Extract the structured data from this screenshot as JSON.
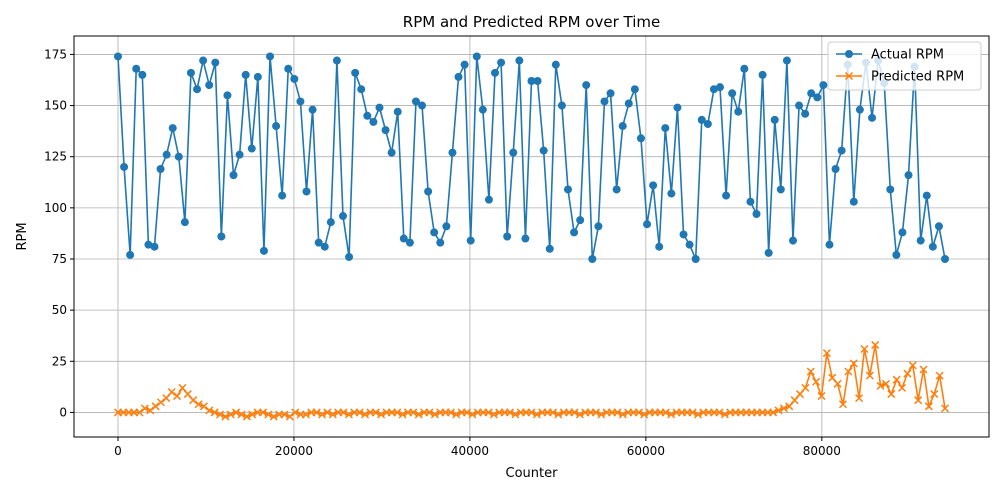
{
  "chart_data": {
    "type": "line",
    "title": "RPM and Predicted RPM over Time",
    "xlabel": "Counter",
    "ylabel": "RPM",
    "xlim": [
      -5000,
      99000
    ],
    "ylim": [
      -12,
      184
    ],
    "xticks": [
      0,
      20000,
      40000,
      60000,
      80000
    ],
    "xtick_labels": [
      "0",
      "20000",
      "40000",
      "60000",
      "80000"
    ],
    "yticks": [
      0,
      25,
      50,
      75,
      100,
      125,
      150,
      175
    ],
    "ytick_labels": [
      "0",
      "25",
      "50",
      "75",
      "100",
      "125",
      "150",
      "175"
    ],
    "grid": true,
    "legend_position": "upper right",
    "x_start": 0,
    "x_step": 500,
    "series": [
      {
        "name": "Actual RPM",
        "color": "#1f77b4",
        "marker": "circle",
        "values": [
          174,
          120,
          77,
          168,
          165,
          82,
          81,
          119,
          126,
          139,
          125,
          93,
          166,
          158,
          172,
          160,
          171,
          86,
          155,
          116,
          126,
          165,
          129,
          164,
          79,
          174,
          140,
          106,
          168,
          163,
          152,
          108,
          148,
          83,
          81,
          93,
          172,
          96,
          76,
          166,
          158,
          145,
          142,
          149,
          138,
          127,
          147,
          85,
          83,
          152,
          150,
          108,
          88,
          83,
          91,
          127,
          164,
          170,
          84,
          174,
          148,
          104,
          166,
          171,
          86,
          127,
          172,
          85,
          162,
          162,
          128,
          80,
          170,
          150,
          109,
          88,
          94,
          160,
          75,
          91,
          152,
          156,
          109,
          140,
          151,
          158,
          134,
          92,
          111,
          81,
          139,
          107,
          149,
          87,
          82,
          75,
          143,
          141,
          158,
          159,
          106,
          156,
          147,
          168,
          103,
          97,
          165,
          78,
          143,
          109,
          172,
          84,
          150,
          146,
          156,
          154,
          160,
          82,
          119,
          128,
          170,
          103,
          148,
          171,
          144,
          172,
          161,
          109,
          77,
          88,
          116,
          169,
          84,
          106,
          81,
          91,
          75
        ],
        "values_note_omitted": false
      },
      {
        "name": "Predicted RPM",
        "color": "#ff7f0e",
        "marker": "x",
        "values": [
          0,
          0,
          0,
          0,
          0,
          2,
          1,
          3,
          5,
          7,
          10,
          8,
          12,
          9,
          6,
          4,
          3,
          1,
          0,
          -1,
          -2,
          -1,
          0,
          -1,
          -2,
          -1,
          0,
          0,
          -1,
          -2,
          -1,
          -1,
          -2,
          0,
          -1,
          -1,
          0,
          0,
          -1,
          0,
          -1,
          0,
          0,
          -1,
          0,
          0,
          -1,
          0,
          0,
          -1,
          0,
          0,
          0,
          -1,
          0,
          0,
          -1,
          0,
          0,
          -1,
          0,
          0,
          0,
          -1,
          0,
          0,
          -1,
          0,
          0,
          0,
          -1,
          0,
          0,
          0,
          -1,
          0,
          0,
          0,
          -1,
          0,
          0,
          0,
          -1,
          0,
          0,
          0,
          -1,
          0,
          0,
          0,
          -1,
          0,
          0,
          0,
          -1,
          0,
          0,
          0,
          -1,
          0,
          0,
          0,
          0,
          -1,
          0,
          0,
          0,
          0,
          -1,
          0,
          0,
          0,
          0,
          -1,
          0,
          0,
          0,
          0,
          0,
          0,
          0,
          0,
          0,
          1,
          2,
          3,
          6,
          9,
          12,
          20,
          15,
          8,
          29,
          17,
          14,
          4,
          20,
          24,
          7,
          31,
          18,
          33,
          13,
          14,
          9,
          16,
          12,
          19,
          23,
          6,
          21,
          3,
          9,
          18,
          2
        ]
      }
    ]
  }
}
